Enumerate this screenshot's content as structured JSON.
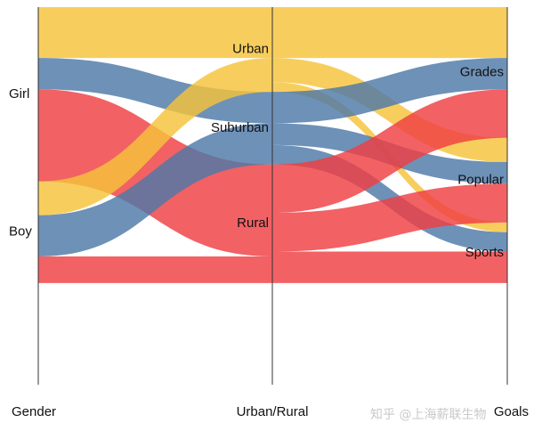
{
  "chart_data": {
    "type": "alluvial",
    "axes": [
      "Gender",
      "Urban/Rural",
      "Goals"
    ],
    "strata": {
      "gender": [
        "Girl",
        "Boy"
      ],
      "urban_rural": [
        "Urban",
        "Suburban",
        "Rural"
      ],
      "goals": [
        "Grades",
        "Popular",
        "Sports"
      ]
    },
    "colors": {
      "Urban": "#f5c33b",
      "Suburban": "#4e79a7",
      "Rural": "#ef3e42"
    },
    "flows_gender_to_urban_rural": [
      {
        "gender": "Girl",
        "urban_rural": "Urban",
        "value": 21
      },
      {
        "gender": "Girl",
        "urban_rural": "Suburban",
        "value": 13
      },
      {
        "gender": "Girl",
        "urban_rural": "Rural",
        "value": 38
      },
      {
        "gender": "Boy",
        "urban_rural": "Urban",
        "value": 14
      },
      {
        "gender": "Boy",
        "urban_rural": "Suburban",
        "value": 17
      },
      {
        "gender": "Boy",
        "urban_rural": "Rural",
        "value": 11
      }
    ],
    "flows_urban_rural_to_goals": [
      {
        "urban_rural": "Urban",
        "goals": "Grades",
        "value": 21
      },
      {
        "urban_rural": "Urban",
        "goals": "Popular",
        "value": 10
      },
      {
        "urban_rural": "Urban",
        "goals": "Sports",
        "value": 4
      },
      {
        "urban_rural": "Suburban",
        "goals": "Grades",
        "value": 13
      },
      {
        "urban_rural": "Suburban",
        "goals": "Popular",
        "value": 9
      },
      {
        "urban_rural": "Suburban",
        "goals": "Sports",
        "value": 8
      },
      {
        "urban_rural": "Rural",
        "goals": "Grades",
        "value": 20
      },
      {
        "urban_rural": "Rural",
        "goals": "Popular",
        "value": 16
      },
      {
        "urban_rural": "Rural",
        "goals": "Sports",
        "value": 13
      }
    ]
  },
  "watermark": "知乎 @上海薪联生物"
}
